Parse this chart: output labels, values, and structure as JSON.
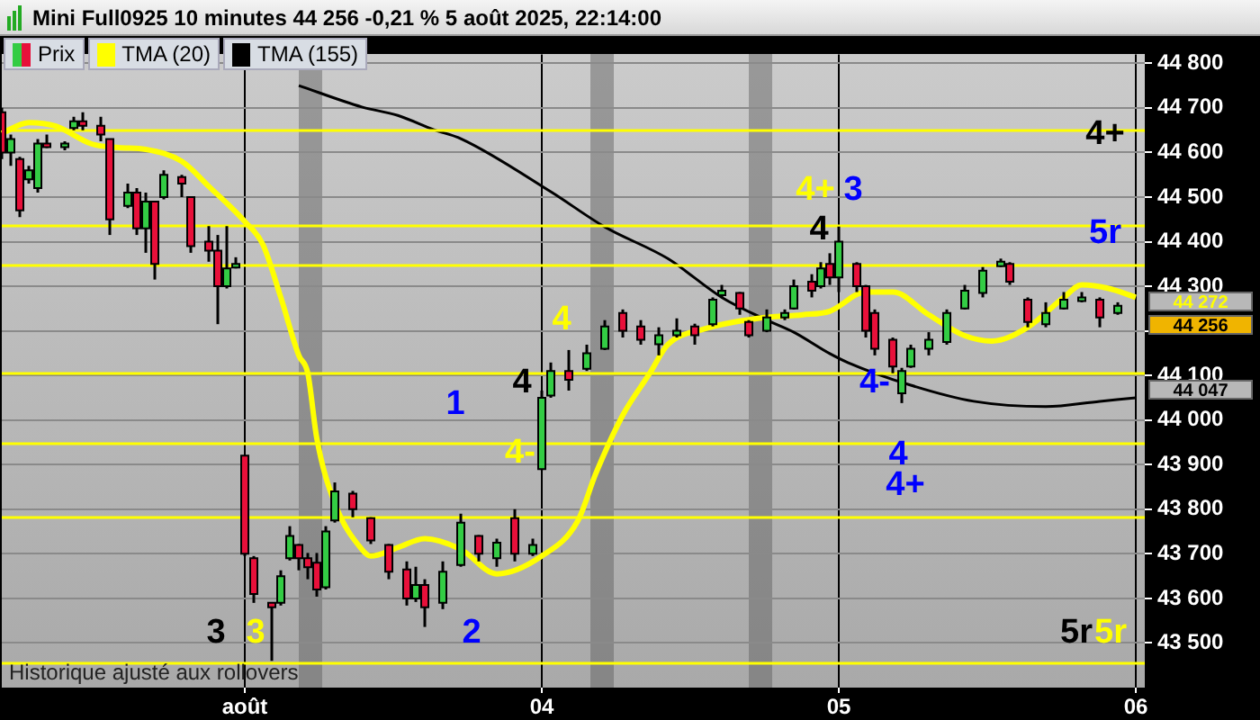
{
  "chart_data": {
    "type": "candlestick",
    "title": "Mini Full0925 10 minutes 44 256 -0,21 % 5 août 2025, 22:14:00",
    "categories": [
      null,
      null,
      null,
      null,
      null,
      null,
      null,
      null,
      null,
      null,
      null,
      null,
      null,
      null,
      null,
      null,
      null,
      null,
      null,
      null,
      null,
      null,
      null,
      null,
      null,
      null,
      null,
      "août",
      null,
      null,
      null,
      null,
      null,
      null,
      null,
      null,
      null,
      null,
      null,
      null,
      null,
      null,
      null,
      null,
      null,
      null,
      null,
      null,
      null,
      null,
      null,
      null,
      null,
      null,
      null,
      null,
      null,
      null,
      null,
      null,
      "04",
      null,
      null,
      null,
      null,
      null,
      null,
      null,
      null,
      null,
      null,
      null,
      null,
      null,
      null,
      null,
      null,
      null,
      null,
      null,
      null,
      null,
      null,
      null,
      null,
      null,
      null,
      null,
      null,
      null,
      null,
      null,
      null,
      "05",
      null,
      null,
      null,
      null,
      null,
      null,
      null,
      null,
      null,
      null,
      null,
      null,
      null,
      null,
      null,
      null,
      null,
      null,
      null,
      null,
      null,
      null,
      null,
      null,
      null,
      null,
      null,
      null,
      null,
      null,
      null,
      null,
      "06",
      null
    ],
    "ylim": [
      43400,
      44820
    ],
    "yticks": [
      {
        "value": 43500,
        "label": "43 500"
      },
      {
        "value": 43600,
        "label": "43 600"
      },
      {
        "value": 43700,
        "label": "43 700"
      },
      {
        "value": 43800,
        "label": "43 800"
      },
      {
        "value": 43900,
        "label": "43 900"
      },
      {
        "value": 44000,
        "label": "44 000"
      },
      {
        "value": 44100,
        "label": "44 100"
      },
      {
        "value": 44200,
        "label": null
      },
      {
        "value": 44300,
        "label": "44 300"
      },
      {
        "value": 44400,
        "label": "44 400"
      },
      {
        "value": 44500,
        "label": "44 500"
      },
      {
        "value": 44600,
        "label": "44 600"
      },
      {
        "value": 44700,
        "label": "44 700"
      },
      {
        "value": 44800,
        "label": "44 800"
      }
    ],
    "grid": true,
    "legend": "top left",
    "marker": "none",
    "line_style": "solid",
    "series": [
      {
        "name": "Prix",
        "ohlc": [
          [
            44690,
            44700,
            44585,
            44600
          ],
          [
            44600,
            44640,
            44570,
            44630
          ],
          [
            44585,
            44590,
            44455,
            44470
          ],
          [
            44540,
            44570,
            44530,
            44560
          ],
          [
            44520,
            44630,
            44510,
            44620
          ],
          [
            44620,
            44640,
            44610,
            44615
          ],
          null,
          [
            44615,
            44625,
            44605,
            44620
          ],
          [
            44655,
            44680,
            44650,
            44670
          ],
          [
            44670,
            44690,
            44650,
            44660
          ],
          null,
          [
            44660,
            44680,
            44625,
            44640
          ],
          [
            44630,
            44630,
            44415,
            44450
          ],
          null,
          [
            44480,
            44530,
            44475,
            44510
          ],
          [
            44510,
            44520,
            44415,
            44430
          ],
          [
            44430,
            44510,
            44375,
            44490
          ],
          [
            44490,
            44490,
            44315,
            44350
          ],
          [
            44500,
            44560,
            44495,
            44550
          ],
          null,
          [
            44545,
            44550,
            44500,
            44530
          ],
          [
            44500,
            44500,
            44375,
            44390
          ],
          null,
          [
            44400,
            44435,
            44355,
            44380
          ],
          [
            44380,
            44415,
            44215,
            44300
          ],
          [
            44300,
            44435,
            44295,
            44340
          ],
          [
            44345,
            44365,
            44340,
            44350
          ],
          [
            43920,
            43920,
            43695,
            43700
          ],
          [
            43690,
            43695,
            43590,
            43610
          ],
          null,
          [
            43590,
            43590,
            43460,
            43580
          ],
          [
            43590,
            43663,
            43584,
            43650
          ],
          [
            43690,
            43762,
            43685,
            43740
          ],
          [
            43720,
            43722,
            43663,
            43690
          ],
          [
            43690,
            43702,
            43643,
            43670
          ],
          [
            43680,
            43702,
            43604,
            43620
          ],
          [
            43625,
            43762,
            43620,
            43750
          ],
          [
            43775,
            43860,
            43770,
            43840
          ],
          null,
          [
            43835,
            43841,
            43782,
            43800
          ],
          null,
          [
            43780,
            43782,
            43722,
            43730
          ],
          null,
          [
            43720,
            43722,
            43643,
            43660
          ],
          null,
          [
            43665,
            43683,
            43584,
            43600
          ],
          [
            43600,
            43671,
            43592,
            43630
          ],
          [
            43630,
            43643,
            43536,
            43580
          ],
          null,
          [
            43590,
            43683,
            43576,
            43660
          ],
          null,
          [
            43675,
            43790,
            43671,
            43770
          ],
          null,
          [
            43740,
            43742,
            43683,
            43700
          ],
          null,
          [
            43690,
            43734,
            43671,
            43725
          ],
          null,
          [
            43780,
            43800,
            43683,
            43700
          ],
          null,
          [
            43700,
            43734,
            43695,
            43720
          ],
          [
            43890,
            44066,
            43888,
            44050
          ],
          [
            44055,
            44129,
            44050,
            44110
          ],
          null,
          [
            44110,
            44157,
            44066,
            44090
          ],
          null,
          [
            44115,
            44169,
            44110,
            44150
          ],
          null,
          [
            44160,
            44224,
            44157,
            44210
          ],
          null,
          [
            44240,
            44248,
            44185,
            44200
          ],
          null,
          [
            44210,
            44224,
            44169,
            44180
          ],
          null,
          [
            44170,
            44208,
            44145,
            44190
          ],
          null,
          [
            44190,
            44228,
            44185,
            44200
          ],
          null,
          [
            44210,
            44216,
            44169,
            44190
          ],
          null,
          [
            44215,
            44275,
            44210,
            44270
          ],
          [
            44280,
            44303,
            44275,
            44290
          ],
          null,
          [
            44285,
            44287,
            44236,
            44250
          ],
          [
            44220,
            44224,
            44185,
            44190
          ],
          null,
          [
            44200,
            44248,
            44197,
            44230
          ],
          null,
          [
            44230,
            44248,
            44224,
            44240
          ],
          [
            44250,
            44315,
            44248,
            44300
          ],
          null,
          [
            44310,
            44327,
            44275,
            44290
          ],
          [
            44300,
            44354,
            44295,
            44340
          ],
          [
            44350,
            44374,
            44303,
            44320
          ],
          [
            44320,
            44434,
            44287,
            44400
          ],
          null,
          [
            44350,
            44354,
            44287,
            44300
          ],
          [
            44300,
            44303,
            44185,
            44200
          ],
          [
            44240,
            44248,
            44145,
            44160
          ],
          null,
          [
            44180,
            44185,
            44105,
            44120
          ],
          [
            44060,
            44117,
            44038,
            44110
          ],
          [
            44120,
            44169,
            44117,
            44160
          ],
          null,
          [
            44160,
            44197,
            44145,
            44180
          ],
          null,
          [
            44175,
            44248,
            44169,
            44240
          ],
          null,
          [
            44250,
            44303,
            44248,
            44290
          ],
          null,
          [
            44285,
            44343,
            44275,
            44335
          ],
          null,
          [
            44345,
            44362,
            44343,
            44355
          ],
          [
            44350,
            44354,
            44303,
            44310
          ],
          null,
          [
            44270,
            44275,
            44208,
            44220
          ],
          null,
          [
            44215,
            44264,
            44208,
            44240
          ],
          null,
          [
            44250,
            44287,
            44248,
            44270
          ],
          null,
          [
            44270,
            44287,
            44264,
            44275
          ],
          null,
          [
            44270,
            44275,
            44208,
            44230
          ],
          null,
          [
            44240,
            44264,
            44236,
            44256
          ],
          null,
          null,
          null
        ]
      },
      {
        "name": "TMA (20)",
        "type": "line",
        "color": "#ffff00",
        "values": [
          44643,
          null,
          null,
          44667,
          null,
          null,
          44659,
          null,
          null,
          null,
          44619,
          null,
          null,
          44611,
          null,
          null,
          44607,
          null,
          null,
          null,
          44580,
          null,
          null,
          44524,
          null,
          null,
          null,
          44445,
          null,
          44394,
          null,
          44275,
          null,
          44145,
          44105,
          43959,
          null,
          43813,
          null,
          null,
          43710,
          43695,
          null,
          null,
          43714,
          null,
          null,
          43734,
          null,
          null,
          null,
          43710,
          null,
          null,
          null,
          43655,
          null,
          null,
          null,
          null,
          43695,
          null,
          null,
          null,
          43774,
          null,
          43880,
          null,
          null,
          44011,
          null,
          null,
          44105,
          null,
          44169,
          null,
          null,
          null,
          44204,
          null,
          null,
          null,
          null,
          null,
          44228,
          null,
          null,
          null,
          null,
          44236,
          null,
          null,
          44244,
          null,
          null,
          null,
          44287,
          null,
          null,
          44287,
          null,
          null,
          null,
          44236,
          null,
          null,
          null,
          44189,
          null,
          null,
          44177,
          null,
          null,
          null,
          44208,
          null,
          null,
          null,
          44275,
          null,
          44303,
          null,
          null,
          44295,
          null,
          null,
          44275,
          null
        ]
      },
      {
        "name": "TMA (155)",
        "type": "line",
        "color": "#000000",
        "values": [
          null,
          null,
          null,
          null,
          null,
          null,
          null,
          null,
          null,
          null,
          null,
          null,
          null,
          null,
          null,
          null,
          null,
          null,
          null,
          null,
          null,
          null,
          null,
          null,
          null,
          null,
          null,
          null,
          null,
          null,
          null,
          null,
          null,
          44750,
          null,
          null,
          null,
          null,
          null,
          null,
          44702,
          null,
          null,
          null,
          44683,
          null,
          null,
          null,
          44651,
          null,
          null,
          44631,
          null,
          null,
          null,
          null,
          null,
          null,
          null,
          null,
          null,
          44512,
          null,
          null,
          null,
          null,
          null,
          44433,
          null,
          null,
          null,
          null,
          null,
          null,
          44362,
          null,
          null,
          null,
          null,
          null,
          44275,
          null,
          null,
          null,
          null,
          44224,
          null,
          null,
          44197,
          null,
          null,
          null,
          44149,
          null,
          44129,
          null,
          null,
          null,
          null,
          null,
          null,
          44078,
          null,
          null,
          null,
          null,
          null,
          null,
          44042,
          null,
          null,
          null,
          null,
          null,
          null,
          null,
          44030,
          null,
          null,
          null,
          null,
          null,
          44042,
          null,
          null,
          null,
          44050,
          null
        ]
      }
    ],
    "ref_lines": [
      {
        "axis": "y",
        "value": 44651,
        "color": "#ffff00"
      },
      {
        "axis": "y",
        "value": 44437,
        "color": "#ffff00"
      },
      {
        "axis": "y",
        "value": 44350,
        "color": "#ffff00"
      },
      {
        "axis": "y",
        "value": 44105,
        "color": "#ffff00"
      },
      {
        "axis": "y",
        "value": 43947,
        "color": "#ffff00"
      },
      {
        "axis": "y",
        "value": 43785,
        "color": "#ffff00"
      },
      {
        "axis": "y",
        "value": 43458,
        "color": "#ffff00"
      }
    ],
    "annotations": [
      "3",
      "3",
      "2",
      "1",
      "4",
      "4",
      "4-",
      "4+",
      "3",
      "4",
      "4-",
      "4",
      "4+",
      "4+",
      "5r",
      "5r",
      "5r",
      "44 272",
      "44 256",
      "44 047",
      "Historique ajusté aux rollovers"
    ]
  }
}
